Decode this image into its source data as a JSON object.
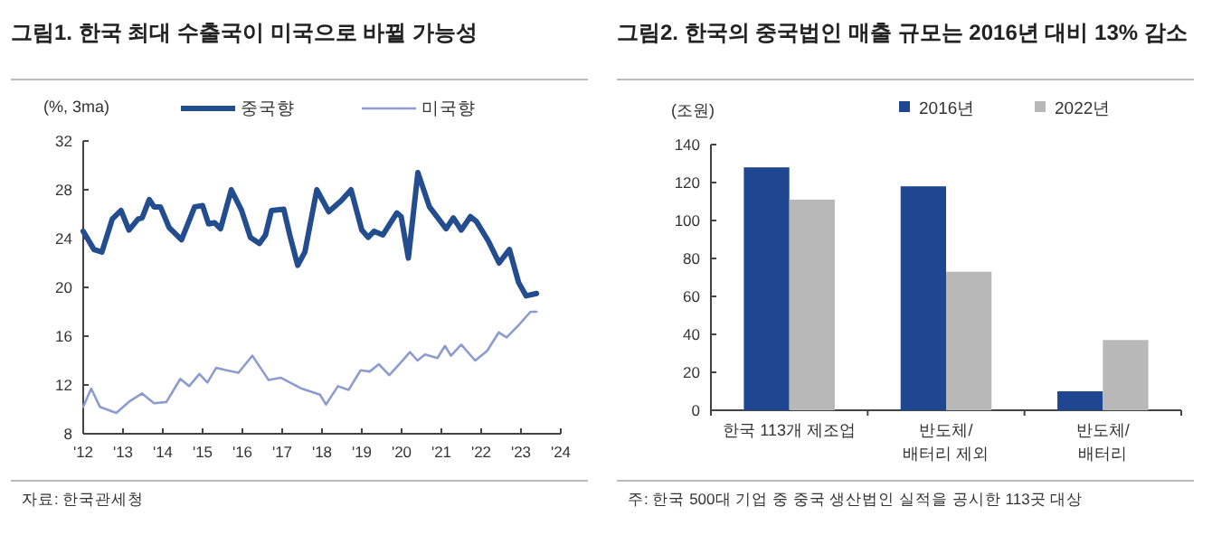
{
  "chart_data": [
    {
      "type": "line",
      "title": "그림1. 한국 최대 수출국이 미국으로 바뀔 가능성",
      "ylabel": "(%, 3ma)",
      "xlim": [
        2012,
        2024
      ],
      "xticks": [
        {
          "value": 2012,
          "label": "'12"
        },
        {
          "value": 2013,
          "label": "'13"
        },
        {
          "value": 2014,
          "label": "'14"
        },
        {
          "value": 2015,
          "label": "'15"
        },
        {
          "value": 2016,
          "label": "'16"
        },
        {
          "value": 2017,
          "label": "'17"
        },
        {
          "value": 2018,
          "label": "'18"
        },
        {
          "value": 2019,
          "label": "'19"
        },
        {
          "value": 2020,
          "label": "'20"
        },
        {
          "value": 2021,
          "label": "'21"
        },
        {
          "value": 2022,
          "label": "'22"
        },
        {
          "value": 2023,
          "label": "'23"
        },
        {
          "value": 2024,
          "label": "'24"
        }
      ],
      "ylim": [
        8,
        32
      ],
      "yticks": [
        8,
        12,
        16,
        20,
        24,
        28,
        32
      ],
      "grid": false,
      "legend": "top",
      "marker": "none",
      "line_style": "solid",
      "annotations": [
        "자료: 한국관세청"
      ],
      "series": [
        {
          "name": "중국향",
          "color": "#234d8e",
          "x": [
            2012.0,
            2012.27,
            2012.47,
            2012.73,
            2012.95,
            2013.15,
            2013.38,
            2013.48,
            2013.66,
            2013.78,
            2013.94,
            2014.16,
            2014.47,
            2014.8,
            2015.0,
            2015.15,
            2015.3,
            2015.45,
            2015.72,
            2015.98,
            2016.2,
            2016.43,
            2016.58,
            2016.73,
            2017.04,
            2017.19,
            2017.39,
            2017.57,
            2017.87,
            2018.17,
            2018.48,
            2018.73,
            2019.0,
            2019.16,
            2019.31,
            2019.53,
            2019.88,
            2019.99,
            2020.17,
            2020.41,
            2020.7,
            2021.12,
            2021.3,
            2021.5,
            2021.73,
            2021.88,
            2022.18,
            2022.45,
            2022.71,
            2022.94,
            2023.13,
            2023.39
          ],
          "values": [
            24.6,
            23.1,
            22.9,
            25.6,
            26.3,
            24.7,
            25.6,
            25.7,
            27.2,
            26.6,
            26.6,
            24.9,
            23.9,
            26.6,
            26.7,
            25.2,
            25.3,
            24.8,
            28.0,
            26.3,
            24.1,
            23.6,
            24.3,
            26.3,
            26.4,
            24.3,
            21.8,
            22.9,
            28.0,
            26.2,
            27.1,
            28.0,
            24.7,
            24.1,
            24.6,
            24.3,
            26.1,
            25.8,
            22.4,
            29.4,
            26.6,
            24.8,
            25.7,
            24.7,
            25.8,
            25.4,
            23.8,
            22.0,
            23.1,
            20.4,
            19.3,
            19.5
          ]
        },
        {
          "name": "미국향",
          "color": "#8d9ccf",
          "x": [
            2012.0,
            2012.2,
            2012.42,
            2012.83,
            2013.18,
            2013.48,
            2013.78,
            2014.09,
            2014.44,
            2014.66,
            2014.92,
            2015.12,
            2015.34,
            2015.6,
            2015.9,
            2016.25,
            2016.66,
            2016.96,
            2017.49,
            2017.95,
            2018.1,
            2018.4,
            2018.67,
            2018.97,
            2019.2,
            2019.43,
            2019.69,
            2019.94,
            2020.21,
            2020.4,
            2020.59,
            2020.9,
            2021.09,
            2021.24,
            2021.5,
            2021.85,
            2022.15,
            2022.44,
            2022.64,
            2022.94,
            2023.24,
            2023.39
          ],
          "values": [
            10.2,
            11.7,
            10.2,
            9.7,
            10.7,
            11.3,
            10.5,
            10.6,
            12.5,
            11.9,
            12.9,
            12.2,
            13.4,
            13.2,
            13.0,
            14.4,
            12.4,
            12.6,
            11.7,
            11.2,
            10.4,
            11.9,
            11.6,
            13.2,
            13.1,
            13.7,
            12.8,
            13.7,
            14.7,
            14.0,
            14.5,
            14.2,
            15.2,
            14.4,
            15.3,
            14.0,
            14.8,
            16.3,
            15.9,
            16.9,
            18.0,
            18.0
          ]
        }
      ]
    },
    {
      "type": "bar",
      "title": "그림2. 한국의 중국법인 매출 규모는 2016년 대비 13% 감소",
      "ylabel": "(조원)",
      "categories": [
        "한국 113개 제조업",
        "반도체/\n배터리 제외",
        "반도체/\n배터리"
      ],
      "ylim": [
        0,
        140
      ],
      "yticks": [
        0,
        20,
        40,
        60,
        80,
        100,
        120,
        140
      ],
      "grid": false,
      "legend": "top",
      "annotations": [
        "주: 한국 500대 기업 중 중국 생산법인 실적을 공시한 113곳 대상"
      ],
      "series": [
        {
          "name": "2016년",
          "color": "#1f4690",
          "values": [
            128,
            118,
            10
          ]
        },
        {
          "name": "2022년",
          "color": "#b8b8b8",
          "values": [
            111,
            73,
            37
          ]
        }
      ]
    }
  ]
}
